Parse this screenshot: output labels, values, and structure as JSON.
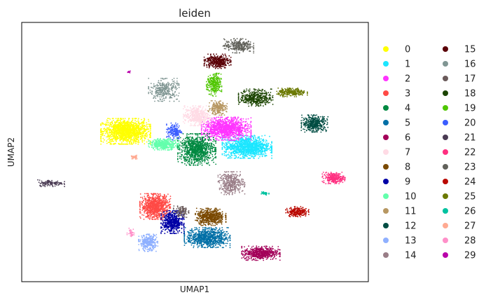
{
  "chart_data": {
    "type": "scatter",
    "title": "leiden",
    "xlabel": "UMAP1",
    "ylabel": "UMAP2",
    "xticks": false,
    "yticks": false,
    "grid": false,
    "legend_position": "right",
    "legend_columns": 2,
    "xlim": [
      0,
      100
    ],
    "ylim": [
      0,
      100
    ],
    "point_size_note": "tiny dots, dense clusters",
    "series": [
      {
        "name": "0",
        "color": "#ffff00",
        "clusters": [
          {
            "cx": 30,
            "cy": 58,
            "rx": 6.5,
            "ry": 4.5,
            "n": 1500
          }
        ]
      },
      {
        "name": "1",
        "color": "#1ce6ff",
        "clusters": [
          {
            "cx": 65,
            "cy": 52,
            "rx": 6.5,
            "ry": 4,
            "n": 1200
          }
        ]
      },
      {
        "name": "2",
        "color": "#ff34ff",
        "clusters": [
          {
            "cx": 59,
            "cy": 59,
            "rx": 6.5,
            "ry": 4,
            "n": 1200
          }
        ]
      },
      {
        "name": "3",
        "color": "#ff4a46",
        "clusters": [
          {
            "cx": 38.5,
            "cy": 29,
            "rx": 4,
            "ry": 4.5,
            "n": 900
          }
        ]
      },
      {
        "name": "4",
        "color": "#008941",
        "clusters": [
          {
            "cx": 50.5,
            "cy": 51,
            "rx": 5,
            "ry": 5.5,
            "n": 1000
          }
        ]
      },
      {
        "name": "5",
        "color": "#006fa6",
        "clusters": [
          {
            "cx": 53.5,
            "cy": 17,
            "rx": 6,
            "ry": 3.5,
            "n": 850
          }
        ]
      },
      {
        "name": "6",
        "color": "#a30059",
        "clusters": [
          {
            "cx": 69,
            "cy": 11,
            "rx": 5,
            "ry": 2.5,
            "n": 550
          }
        ]
      },
      {
        "name": "7",
        "color": "#ffdbe5",
        "clusters": [
          {
            "cx": 50.5,
            "cy": 64,
            "rx": 3.5,
            "ry": 3.5,
            "n": 450
          }
        ]
      },
      {
        "name": "8",
        "color": "#7a4900",
        "clusters": [
          {
            "cx": 54.5,
            "cy": 25,
            "rx": 4,
            "ry": 3,
            "n": 550
          }
        ]
      },
      {
        "name": "9",
        "color": "#0000a6",
        "clusters": [
          {
            "cx": 43.5,
            "cy": 23,
            "rx": 3,
            "ry": 4,
            "n": 550
          }
        ]
      },
      {
        "name": "10",
        "color": "#63ffac",
        "clusters": [
          {
            "cx": 41,
            "cy": 53,
            "rx": 4,
            "ry": 2,
            "n": 420
          }
        ]
      },
      {
        "name": "11",
        "color": "#b79762",
        "clusters": [
          {
            "cx": 56.5,
            "cy": 67,
            "rx": 2.5,
            "ry": 2.5,
            "n": 220
          }
        ]
      },
      {
        "name": "12",
        "color": "#004d43",
        "clusters": [
          {
            "cx": 84.5,
            "cy": 61,
            "rx": 3.5,
            "ry": 3,
            "n": 420
          }
        ]
      },
      {
        "name": "13",
        "color": "#8fb0ff",
        "clusters": [
          {
            "cx": 36.5,
            "cy": 15,
            "rx": 2.5,
            "ry": 3,
            "n": 320
          }
        ]
      },
      {
        "name": "14",
        "color": "#997d87",
        "clusters": [
          {
            "cx": 60.5,
            "cy": 38,
            "rx": 3.5,
            "ry": 4,
            "n": 380
          }
        ]
      },
      {
        "name": "15",
        "color": "#5a0007",
        "clusters": [
          {
            "cx": 56.5,
            "cy": 85,
            "rx": 3.5,
            "ry": 2.5,
            "n": 380
          }
        ]
      },
      {
        "name": "16",
        "color": "#809693",
        "clusters": [
          {
            "cx": 41,
            "cy": 74,
            "rx": 4,
            "ry": 4,
            "n": 320
          }
        ]
      },
      {
        "name": "17",
        "color": "#6a5a5a",
        "clusters": [
          {
            "cx": 46,
            "cy": 27,
            "rx": 2,
            "ry": 2,
            "n": 120
          }
        ]
      },
      {
        "name": "18",
        "color": "#1b4400",
        "clusters": [
          {
            "cx": 67.5,
            "cy": 71,
            "rx": 4.5,
            "ry": 3,
            "n": 420
          }
        ]
      },
      {
        "name": "19",
        "color": "#4fc601",
        "clusters": [
          {
            "cx": 55.5,
            "cy": 76,
            "rx": 2,
            "ry": 4,
            "n": 280
          }
        ]
      },
      {
        "name": "20",
        "color": "#3b5dff",
        "clusters": [
          {
            "cx": 44,
            "cy": 58,
            "rx": 2,
            "ry": 3,
            "n": 180
          }
        ]
      },
      {
        "name": "21",
        "color": "#4a3b53",
        "clusters": [
          {
            "cx": 8.5,
            "cy": 38,
            "rx": 3.5,
            "ry": 1.2,
            "n": 120
          }
        ]
      },
      {
        "name": "22",
        "color": "#ff2f80",
        "clusters": [
          {
            "cx": 90,
            "cy": 40,
            "rx": 3,
            "ry": 2,
            "n": 260
          }
        ]
      },
      {
        "name": "23",
        "color": "#61615a",
        "clusters": [
          {
            "cx": 62.5,
            "cy": 91,
            "rx": 4,
            "ry": 2.5,
            "n": 280
          }
        ]
      },
      {
        "name": "24",
        "color": "#ba0900",
        "clusters": [
          {
            "cx": 79.5,
            "cy": 27,
            "rx": 3,
            "ry": 1.8,
            "n": 220
          }
        ]
      },
      {
        "name": "25",
        "color": "#6b7900",
        "clusters": [
          {
            "cx": 78,
            "cy": 73,
            "rx": 4,
            "ry": 1.5,
            "n": 260
          }
        ]
      },
      {
        "name": "26",
        "color": "#00c2a0",
        "clusters": [
          {
            "cx": 70,
            "cy": 34,
            "rx": 1.2,
            "ry": 0.6,
            "n": 40
          }
        ]
      },
      {
        "name": "27",
        "color": "#ffaa92",
        "clusters": [
          {
            "cx": 32.5,
            "cy": 48,
            "rx": 1,
            "ry": 0.8,
            "n": 40
          }
        ]
      },
      {
        "name": "28",
        "color": "#ff90c9",
        "clusters": [
          {
            "cx": 31.5,
            "cy": 19,
            "rx": 1,
            "ry": 1.5,
            "n": 40
          }
        ]
      },
      {
        "name": "29",
        "color": "#b903aa",
        "clusters": [
          {
            "cx": 31,
            "cy": 81,
            "rx": 0.6,
            "ry": 0.4,
            "n": 12
          }
        ]
      }
    ]
  }
}
